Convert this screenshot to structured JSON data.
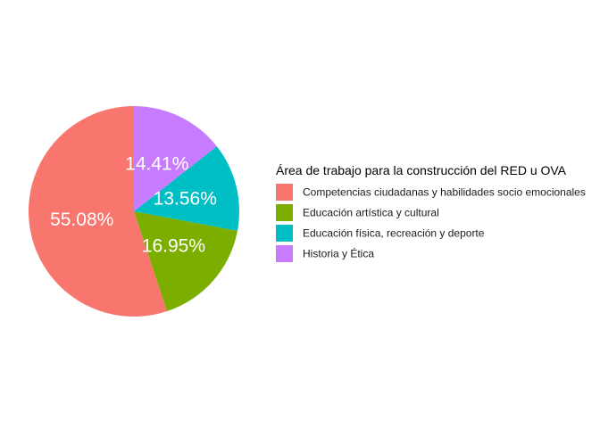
{
  "chart_data": {
    "type": "pie",
    "legend_title": "Área de trabajo para la construcción del RED u OVA",
    "legend_position": "right",
    "slices": [
      {
        "name": "Competencias ciudadanas y habilidades socio emocionales",
        "value": 55.08,
        "label": "55.08%",
        "color": "#F8766D"
      },
      {
        "name": "Educación artística y cultural",
        "value": 16.95,
        "label": "16.95%",
        "color": "#7CAE00"
      },
      {
        "name": "Educación física, recreación y deporte",
        "value": 13.56,
        "label": "13.56%",
        "color": "#00BFC4"
      },
      {
        "name": "Historia y Ética",
        "value": 14.41,
        "label": "14.41%",
        "color": "#C77CFF"
      }
    ]
  }
}
